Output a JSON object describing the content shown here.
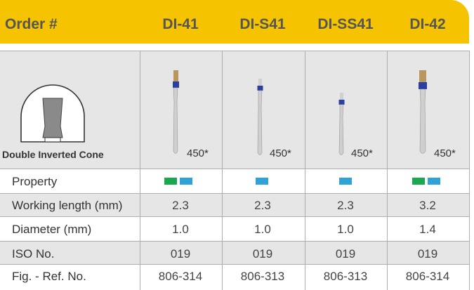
{
  "colors": {
    "header": "#f5c300",
    "green": "#1aa84f",
    "blue": "#2fa3d8",
    "grey_row": "#e6e6e6"
  },
  "header": {
    "order_label": "Order #",
    "columns": [
      "DI-41",
      "DI-S41",
      "DI-SS41",
      "DI-42"
    ]
  },
  "shape": {
    "caption": "Double Inverted Cone",
    "icon": "double-inverted-cone-icon"
  },
  "grades": [
    "450*",
    "450*",
    "450*",
    "450*"
  ],
  "property": {
    "label": "Property",
    "swatches": [
      [
        "green",
        "blue"
      ],
      [
        "blue"
      ],
      [
        "blue"
      ],
      [
        "green",
        "blue"
      ]
    ]
  },
  "rows": [
    {
      "label": "Working length (mm)",
      "values": [
        "2.3",
        "2.3",
        "2.3",
        "3.2"
      ]
    },
    {
      "label": "Diameter (mm)",
      "values": [
        "1.0",
        "1.0",
        "1.0",
        "1.4"
      ]
    },
    {
      "label": "ISO No.",
      "values": [
        "019",
        "019",
        "019",
        "019"
      ]
    },
    {
      "label": "Fig. - Ref. No.",
      "values": [
        "806-314",
        "806-313",
        "806-313",
        "806-314"
      ]
    }
  ]
}
